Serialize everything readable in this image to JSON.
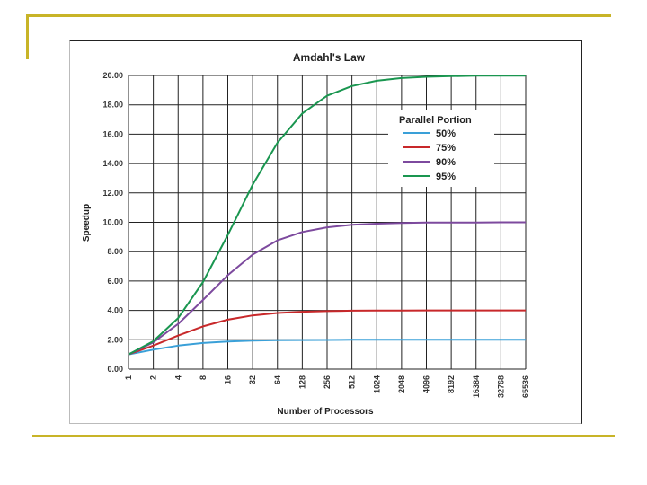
{
  "chart_data": {
    "type": "line",
    "title": "Amdahl's Law",
    "xlabel": "Number of Processors",
    "ylabel": "Speedup",
    "x_scale": "log2",
    "categories": [
      "1",
      "2",
      "4",
      "8",
      "16",
      "32",
      "64",
      "128",
      "256",
      "512",
      "1024",
      "2048",
      "4096",
      "8192",
      "16384",
      "32768",
      "65536"
    ],
    "ylim": [
      0,
      20
    ],
    "yticks": [
      "0.00",
      "2.00",
      "4.00",
      "6.00",
      "8.00",
      "10.00",
      "12.00",
      "14.00",
      "16.00",
      "18.00",
      "20.00"
    ],
    "grid": true,
    "legend": {
      "title": "Parallel Portion",
      "position": "top-right"
    },
    "series": [
      {
        "name": "50%",
        "color": "#3aa0d8",
        "values": [
          1.0,
          1.33,
          1.6,
          1.78,
          1.88,
          1.94,
          1.97,
          1.98,
          1.99,
          2.0,
          2.0,
          2.0,
          2.0,
          2.0,
          2.0,
          2.0,
          2.0
        ]
      },
      {
        "name": "75%",
        "color": "#c8282a",
        "values": [
          1.0,
          1.6,
          2.29,
          2.91,
          3.37,
          3.66,
          3.82,
          3.91,
          3.95,
          3.98,
          3.99,
          3.99,
          4.0,
          4.0,
          4.0,
          4.0,
          4.0
        ]
      },
      {
        "name": "90%",
        "color": "#7d4a9e",
        "values": [
          1.0,
          1.82,
          3.08,
          4.71,
          6.4,
          7.8,
          8.77,
          9.34,
          9.66,
          9.83,
          9.91,
          9.96,
          9.98,
          9.99,
          9.99,
          10.0,
          10.0
        ]
      },
      {
        "name": "95%",
        "color": "#1a9650",
        "values": [
          1.0,
          1.9,
          3.48,
          5.93,
          9.14,
          12.55,
          15.42,
          17.41,
          18.62,
          19.28,
          19.64,
          19.82,
          19.91,
          19.95,
          19.98,
          19.99,
          19.99
        ]
      }
    ]
  }
}
